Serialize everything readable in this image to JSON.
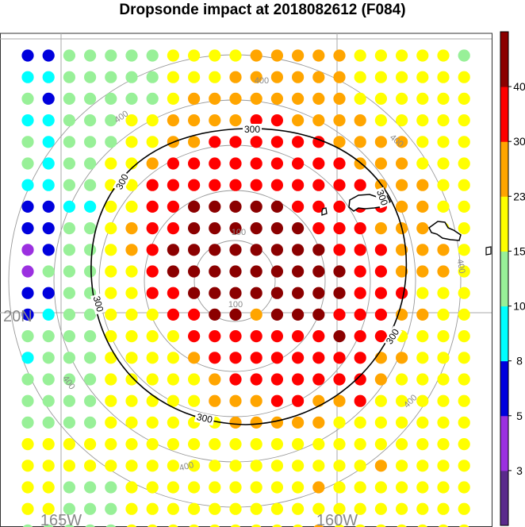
{
  "title": "Dropsonde impact at 2018082612 (F084)",
  "map": {
    "lon_labels": [
      "165W",
      "160W"
    ],
    "lat_labels": [
      "20N"
    ],
    "ring_labels": [
      "100",
      "100",
      "400",
      "400",
      "400",
      "400",
      "400",
      "400"
    ],
    "contour_labels": [
      "300",
      "300",
      "300",
      "300",
      "300"
    ]
  },
  "colorbar": {
    "labels": [
      "3",
      "5",
      "8",
      "10",
      "15",
      "23",
      "30",
      "40"
    ],
    "colors": [
      "#5a2a8c",
      "#9b30e0",
      "#0000dd",
      "#00ffff",
      "#98f098",
      "#ffff00",
      "#ffa500",
      "#ff0000",
      "#8b0000"
    ]
  },
  "chart_data": {
    "type": "scatter",
    "title": "Dropsonde impact at 2018082612 (F084)",
    "bins": [
      0,
      3,
      5,
      8,
      10,
      15,
      23,
      30,
      40
    ],
    "grid_rows": [
      "BBGGGGGYYYYOOOOOYYYYYG",
      "CCGGGGGYYYOOOOOOYYYYYY",
      "GBGGGGGYOOOOOOOOYYYYYY",
      "CCGGGYYOOOORROOOOYYYYY",
      "GCGGGYYOORRRRRROOOOYYY",
      "GCGGYYORRRRRRRRROOOYYY",
      "CCGGYYRRRRRRRRRRROOOYY",
      "BBCCYYRRDDDDDRRRRROOYY",
      "BBGGYORRDDDDDDRRROOOYY",
      "PBGGYORDDDDDDDDRRROOOY",
      "PGGGYYRDDDDDDDDDRROOOY",
      "BBGGYYRRDDDDDDDDRRRYYY",
      "BCGGYYYRRDDODDDRRROOYY",
      "GGGGYYYYRRRRRRRDRRYYYY",
      "CGGGYYYYORRRRRRRROOYYY",
      "GGGGYYYYYORRRRRRROYYYY",
      "GGGGYYYYYOOORROORYYYYY",
      "GGGGYYYYYYOOOOOYYYYYYY",
      "YYYYYYYYYYYYYYYYYYYYYY",
      "YYYYYYYYYYYYYYYYYOYYYY",
      "YYGGGYYYYYYYYYOYYYYYYY",
      "YYGGGYYYYYYYYYYYYYYYYY",
      "GGGGGYYYYYYYYYOYYYYYYY"
    ],
    "legend": {
      "P": "3-5",
      "B": "5-8",
      "C": "8-10",
      "G": "10-15",
      "Y": "15-23",
      "O": "23-30",
      "R": "30-40",
      "D": "40+"
    },
    "contour": {
      "level": 300
    },
    "range_rings": [
      100,
      200,
      300,
      400,
      500
    ]
  }
}
